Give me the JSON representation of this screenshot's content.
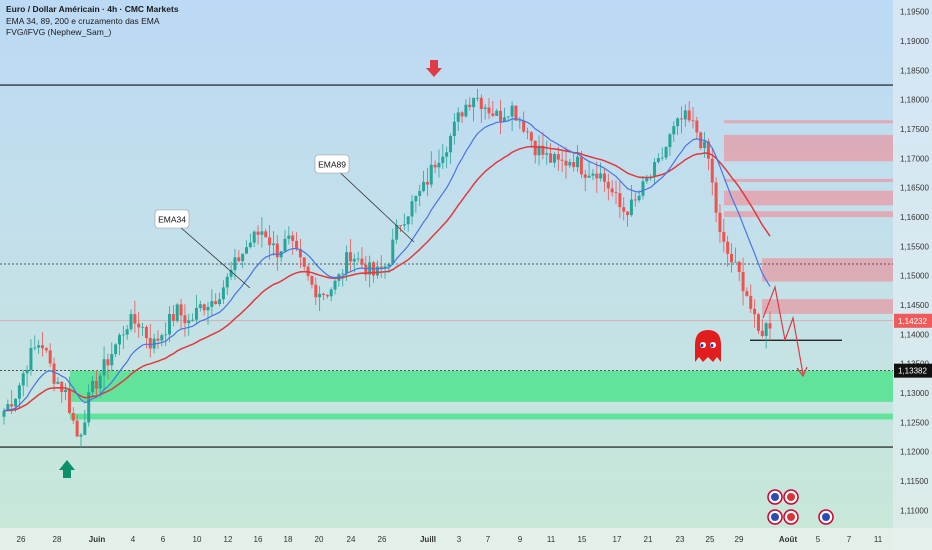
{
  "legend": {
    "title": "Euro / Dollar Américain · 4h · CMC Markets",
    "line2": "EMA 34, 89, 200 e cruzamento das EMA",
    "line3": "FVG/iFVG (Nephew_Sam_)"
  },
  "colors": {
    "bull": "#26a69a",
    "bear": "#ef5350",
    "ema34": "#4a74e3",
    "ema89": "#e0393e",
    "supply_zone": "#e79aa4",
    "demand_zone": "#4fe38f",
    "price_tag": "#f05a5a",
    "level_tag": "#111111"
  },
  "chart_data": {
    "type": "candlestick",
    "symbol": "EURUSD",
    "timeframe": "4h",
    "ylim": [
      1.107,
      1.197
    ],
    "y_ticks": [
      "1,19500",
      "1,19000",
      "1,18500",
      "1,18000",
      "1,17500",
      "1,17000",
      "1,16500",
      "1,16000",
      "1,15500",
      "1,15000",
      "1,14500",
      "1,14000",
      "1,13500",
      "1,13000",
      "1,12500",
      "1,12000",
      "1,11500",
      "1,11000"
    ],
    "y_tick_values": [
      1.195,
      1.19,
      1.185,
      1.18,
      1.175,
      1.17,
      1.165,
      1.16,
      1.155,
      1.15,
      1.145,
      1.14,
      1.135,
      1.13,
      1.125,
      1.12,
      1.115,
      1.11
    ],
    "x_ticks": [
      "26",
      "28",
      "Juin",
      "4",
      "6",
      "10",
      "12",
      "16",
      "18",
      "20",
      "24",
      "26",
      "Juill",
      "3",
      "7",
      "9",
      "11",
      "15",
      "17",
      "21",
      "23",
      "25",
      "29",
      "Août",
      "5",
      "7",
      "11"
    ],
    "current_price_label": "1,14232",
    "current_price": 1.14232,
    "level_label": "1,13382",
    "level_price": 1.13382,
    "close_path": [
      1.127,
      1.13,
      1.136,
      1.139,
      1.133,
      1.13,
      1.122,
      1.13,
      1.134,
      1.138,
      1.142,
      1.142,
      1.138,
      1.141,
      1.144,
      1.142,
      1.145,
      1.146,
      1.149,
      1.153,
      1.156,
      1.158,
      1.154,
      1.156,
      1.152,
      1.148,
      1.147,
      1.149,
      1.154,
      1.152,
      1.15,
      1.152,
      1.159,
      1.162,
      1.165,
      1.17,
      1.173,
      1.178,
      1.181,
      1.179,
      1.177,
      1.179,
      1.176,
      1.172,
      1.17,
      1.169,
      1.17,
      1.168,
      1.168,
      1.165,
      1.161,
      1.162,
      1.166,
      1.169,
      1.174,
      1.177,
      1.175,
      1.17,
      1.156,
      1.152,
      1.148,
      1.14,
      1.142
    ],
    "resistance_line": 1.1825,
    "support_line": 1.1208,
    "target_line": 1.139,
    "supply_zones": [
      [
        1.176,
        1.1765
      ],
      [
        1.1695,
        1.174
      ],
      [
        1.166,
        1.1665
      ],
      [
        1.162,
        1.1645
      ],
      [
        1.16,
        1.161
      ],
      [
        1.149,
        1.153
      ],
      [
        1.1435,
        1.146
      ]
    ],
    "demand_zones": [
      [
        1.1285,
        1.1338
      ],
      [
        1.1255,
        1.1265
      ]
    ],
    "annotations": [
      "EMA34",
      "EMA89"
    ]
  }
}
